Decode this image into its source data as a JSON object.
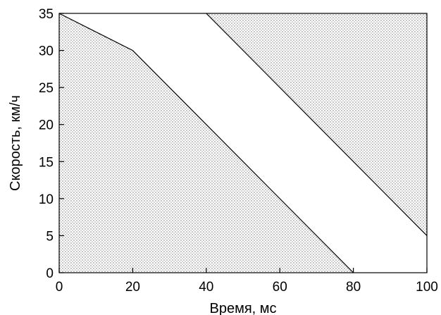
{
  "chart_data": {
    "type": "area",
    "title": "",
    "xlabel": "Время, мс",
    "ylabel": "Скорость, км/ч",
    "xlim": [
      0,
      100
    ],
    "ylim": [
      0,
      35
    ],
    "x_ticks": [
      0,
      20,
      40,
      60,
      80,
      100
    ],
    "y_ticks": [
      0,
      5,
      10,
      15,
      20,
      25,
      30,
      35
    ],
    "x_tick_labels": [
      "0",
      "20",
      "40",
      "60",
      "80",
      "100"
    ],
    "y_tick_labels": [
      "0",
      "5",
      "10",
      "15",
      "20",
      "25",
      "30",
      "35"
    ],
    "grid": false,
    "legend": "none",
    "series": [
      {
        "region": "below-left",
        "boundary": [
          {
            "x": 0,
            "y": 35
          },
          {
            "x": 20,
            "y": 30
          },
          {
            "x": 80,
            "y": 0
          }
        ],
        "fill": "dotted"
      },
      {
        "region": "above-right",
        "boundary": [
          {
            "x": 40,
            "y": 35
          },
          {
            "x": 100,
            "y": 5
          }
        ],
        "fill": "dotted"
      }
    ],
    "colors": {
      "fill_dots": "#8a8a8a",
      "line": "#000000",
      "background": "#ffffff"
    }
  }
}
